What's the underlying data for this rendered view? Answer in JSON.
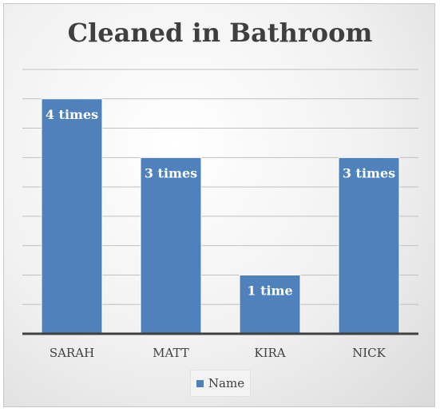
{
  "chart_data": {
    "type": "bar",
    "title": "Cleaned in Bathroom",
    "categories": [
      "SARAH",
      "MATT",
      "KIRA",
      "NICK"
    ],
    "series": [
      {
        "name": "Name",
        "values": [
          4,
          3,
          1,
          3
        ]
      }
    ],
    "data_labels": [
      "4 times",
      "3 times",
      "1 time",
      "3 times"
    ],
    "ylim": [
      0,
      4.5
    ],
    "grid": true,
    "legend": "bottom",
    "colors": {
      "bar": "#4f81bd",
      "bar_edge": "#ffffff",
      "grid": "#c0c0c0",
      "axis": "#404040"
    }
  }
}
